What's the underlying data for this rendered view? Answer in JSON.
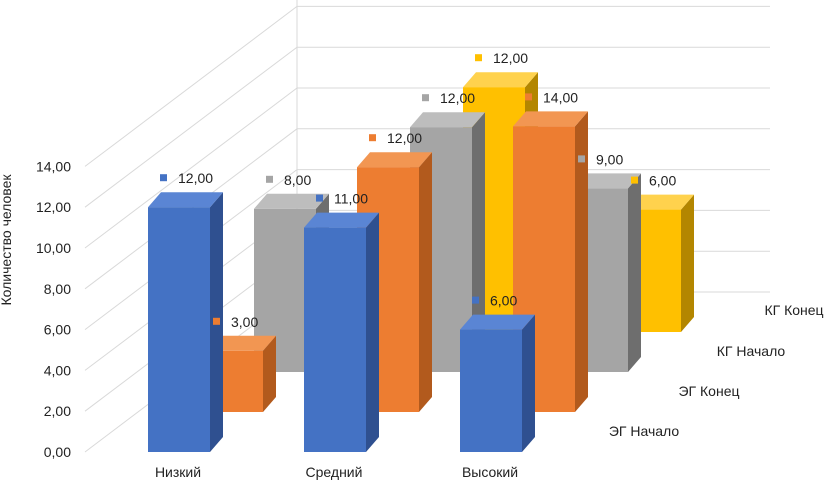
{
  "chart_data": {
    "type": "bar",
    "style": "3d-clustered-column",
    "title": "",
    "xlabel": "",
    "ylabel": "Количество человек",
    "ylim": [
      0,
      14
    ],
    "ytick_step": 2,
    "yticks": [
      "0,00",
      "2,00",
      "4,00",
      "6,00",
      "8,00",
      "10,00",
      "12,00",
      "14,00"
    ],
    "categories": [
      "Низкий",
      "Средний",
      "Высокий"
    ],
    "series": [
      {
        "name": "ЭГ Начало",
        "values": [
          12,
          11,
          6
        ],
        "labels": [
          "12,00",
          "11,00",
          "6,00"
        ],
        "color": "#4472C4",
        "side": "#2F5090",
        "top": "#5A85D4"
      },
      {
        "name": "ЭГ Конец",
        "values": [
          3,
          12,
          14
        ],
        "labels": [
          "3,00",
          "12,00",
          "14,00"
        ],
        "color": "#ED7D31",
        "side": "#B25A1D",
        "top": "#F29652"
      },
      {
        "name": "КГ Начало",
        "values": [
          8,
          12,
          9
        ],
        "labels": [
          "8,00",
          "12,00",
          "9,00"
        ],
        "color": "#A5A5A5",
        "side": "#6E6E6E",
        "top": "#BDBDBD"
      },
      {
        "name": "КГ Конец",
        "values": [
          null,
          12,
          6
        ],
        "labels": [
          "",
          "12,00",
          "6,00"
        ],
        "color": "#FFC000",
        "side": "#B38600",
        "top": "#FFD24D"
      }
    ],
    "grid": true,
    "legend": "depth axis, right"
  }
}
